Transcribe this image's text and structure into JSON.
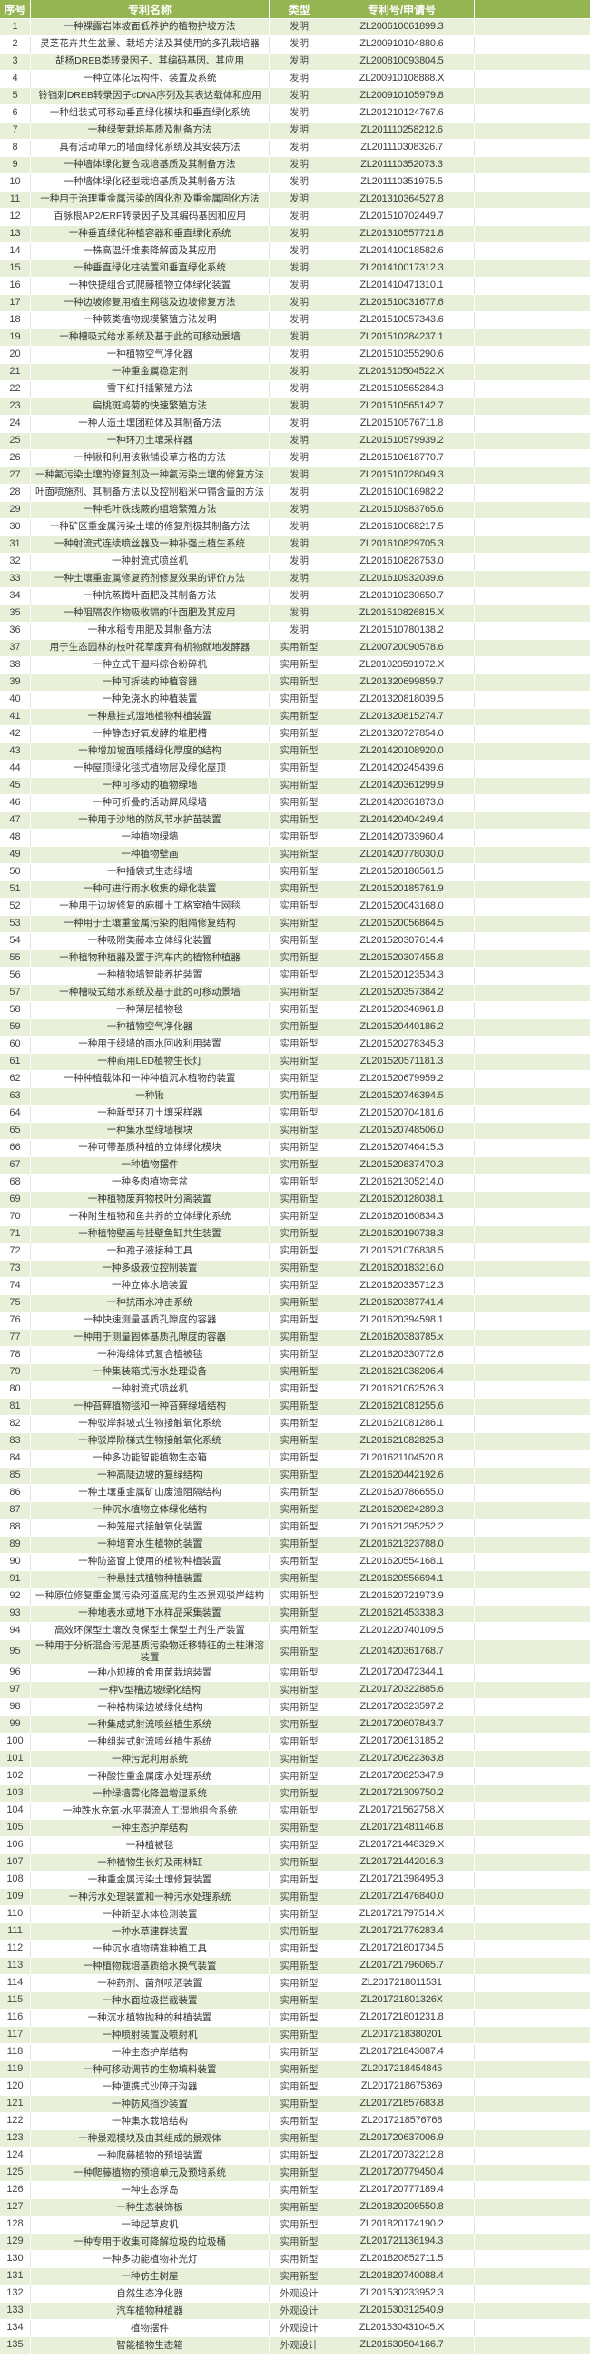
{
  "table": {
    "columns": [
      "序号",
      "专利名称",
      "类型",
      "专利号/申请号"
    ],
    "rows": [
      [
        "1",
        "一种裸露岩体坡面低养护的植物护坡方法",
        "发明",
        "ZL200610061899.3"
      ],
      [
        "2",
        "灵芝花卉共生盆景、栽培方法及其使用的多孔栽培器",
        "发明",
        "ZL200910104880.6"
      ],
      [
        "3",
        "胡杨DREB类转录因子、其编码基因、其应用",
        "发明",
        "ZL200810093804.5"
      ],
      [
        "4",
        "一种立体花坛构件、装置及系统",
        "发明",
        "ZL200910108888.X"
      ],
      [
        "5",
        "铃铛刺DREB转录因子cDNA序列及其表达载体和应用",
        "发明",
        "ZL200910105979.8"
      ],
      [
        "6",
        "一种组装式可移动垂直绿化模块和垂直绿化系统",
        "发明",
        "ZL201210124767.6"
      ],
      [
        "7",
        "一种绿萝栽培基质及制备方法",
        "发明",
        "ZL201110258212.6"
      ],
      [
        "8",
        "具有活动单元的墙面绿化系统及其安装方法",
        "发明",
        "ZL201110308326.7"
      ],
      [
        "9",
        "一种墙体绿化复合栽培基质及其制备方法",
        "发明",
        "ZL201110352073.3"
      ],
      [
        "10",
        "一种墙体绿化轻型栽培基质及其制备方法",
        "发明",
        "ZL201110351975.5"
      ],
      [
        "11",
        "一种用于治理重金属污染的固化剂及重金属固化方法",
        "发明",
        "ZL201310364527.8"
      ],
      [
        "12",
        "百脉根AP2/ERF转录因子及其编码基因和应用",
        "发明",
        "ZL201510702449.7"
      ],
      [
        "13",
        "一种垂直绿化种植容器和垂直绿化系统",
        "发明",
        "ZL201310557721.8"
      ],
      [
        "14",
        "一株高温纤维素降解菌及其应用",
        "发明",
        "ZL201410018582.6"
      ],
      [
        "15",
        "一种垂直绿化柱装置和垂直绿化系统",
        "发明",
        "ZL201410017312.3"
      ],
      [
        "16",
        "一种快捷组合式爬藤植物立体绿化装置",
        "发明",
        "ZL201410471310.1"
      ],
      [
        "17",
        "一种边坡修复用植生网毯及边坡修复方法",
        "发明",
        "ZL201510031677.6"
      ],
      [
        "18",
        "一种蕨类植物规模繁殖方法发明",
        "发明",
        "ZL201510057343.6"
      ],
      [
        "19",
        "一种槽吸式给水系统及基于此的可移动景墙",
        "发明",
        "ZL201510284237.1"
      ],
      [
        "20",
        "一种植物空气净化器",
        "发明",
        "ZL201510355290.6"
      ],
      [
        "21",
        "一种重金属稳定剂",
        "发明",
        "ZL201510504522.X"
      ],
      [
        "22",
        "雪下红扦插繁殖方法",
        "发明",
        "ZL201510565284.3"
      ],
      [
        "23",
        "扁桃斑鸠菊的快速繁殖方法",
        "发明",
        "ZL201510565142.7"
      ],
      [
        "24",
        "一种人造土壤团粒体及其制备方法",
        "发明",
        "ZL201510576711.8"
      ],
      [
        "25",
        "一种环刀土壤采样器",
        "发明",
        "ZL201510579939.2"
      ],
      [
        "26",
        "一种锹和利用该锹铺设草方格的方法",
        "发明",
        "ZL201510618770.7"
      ],
      [
        "27",
        "一种氟污染土壤的修复剂及一种氟污染土壤的修复方法",
        "发明",
        "ZL201510728049.3"
      ],
      [
        "28",
        "叶面喷施剂、其制备方法以及控制稻米中镉含量的方法",
        "发明",
        "ZL201610016982.2"
      ],
      [
        "29",
        "一种毛叶铁线蕨的组培繁殖方法",
        "发明",
        "ZL201510983765.6"
      ],
      [
        "30",
        "一种矿区重金属污染土壤的修复剂极其制备方法",
        "发明",
        "ZL201610068217.5"
      ],
      [
        "31",
        "一种射流式连续喷丝器及一种补强土植生系统",
        "发明",
        "ZL201610829705.3"
      ],
      [
        "32",
        "一种射流式喷丝机",
        "发明",
        "ZL201610828753.0"
      ],
      [
        "33",
        "一种土壤重金属修复药剂修复效果的评价方法",
        "发明",
        "ZL201610932039.6"
      ],
      [
        "34",
        "一种抗蒸腾叶面肥及其制备方法",
        "发明",
        "ZL201010230650.7"
      ],
      [
        "35",
        "一种阻隔农作物吸收镉的叶面肥及其应用",
        "发明",
        "ZL201510826815.X"
      ],
      [
        "36",
        "一种水稻专用肥及其制备方法",
        "发明",
        "ZL201510780138.2"
      ],
      [
        "37",
        "用于生态园林的枝叶花草废弃有机物就地发酵器",
        "实用新型",
        "ZL200720090578.6"
      ],
      [
        "38",
        "一种立式干湿料综合粉碎机",
        "实用新型",
        "ZL201020591972.X"
      ],
      [
        "39",
        "一种可拆装的种植容器",
        "实用新型",
        "ZL201320699859.7"
      ],
      [
        "40",
        "一种免浇水的种植装置",
        "实用新型",
        "ZL201320818039.5"
      ],
      [
        "41",
        "一种悬挂式湿地植物种植装置",
        "实用新型",
        "ZL201320815274.7"
      ],
      [
        "42",
        "一种静态好氧发酵的堆肥槽",
        "实用新型",
        "ZL201320727854.0"
      ],
      [
        "43",
        "一种增加坡面喷播绿化厚度的结构",
        "实用新型",
        "ZL201420108920.0"
      ],
      [
        "44",
        "一种屋顶绿化毯式植物层及绿化屋顶",
        "实用新型",
        "ZL201420245439.6"
      ],
      [
        "45",
        "一种可移动的植物绿墙",
        "实用新型",
        "ZL201420361299.9"
      ],
      [
        "46",
        "一种可折叠的活动屏风绿墙",
        "实用新型",
        "ZL201420361873.0"
      ],
      [
        "47",
        "一种用于沙地的防风节水护苗装置",
        "实用新型",
        "ZL201420404249.4"
      ],
      [
        "48",
        "一种植物绿墙",
        "实用新型",
        "ZL201420733960.4"
      ],
      [
        "49",
        "一种植物壁画",
        "实用新型",
        "ZL201420778030.0"
      ],
      [
        "50",
        "一种插袋式生态绿墙",
        "实用新型",
        "ZL201520186561.5"
      ],
      [
        "51",
        "一种可进行雨水收集的绿化装置",
        "实用新型",
        "ZL201520185761.9"
      ],
      [
        "52",
        "一种用于边坡修复的麻椰土工格室植生网毯",
        "实用新型",
        "ZL201520043168.0"
      ],
      [
        "53",
        "一种用于土壤重金属污染的阻隔修复结构",
        "实用新型",
        "ZL201520056864.5"
      ],
      [
        "54",
        "一种吸附类藤本立体绿化装置",
        "实用新型",
        "ZL201520307614.4"
      ],
      [
        "55",
        "一种植物种植器及置于汽车内的植物种植器",
        "实用新型",
        "ZL201520307455.8"
      ],
      [
        "56",
        "一种植物墙智能养护装置",
        "实用新型",
        "ZL201520123534.3"
      ],
      [
        "57",
        "一种槽吸式给水系统及基于此的可移动景墙",
        "实用新型",
        "ZL201520357384.2"
      ],
      [
        "58",
        "一种薄层植物毯",
        "实用新型",
        "ZL201520346961.8"
      ],
      [
        "59",
        "一种植物空气净化器",
        "实用新型",
        "ZL201520440186.2"
      ],
      [
        "60",
        "一种用于绿墙的雨水回收利用装置",
        "实用新型",
        "ZL201520278345.3"
      ],
      [
        "61",
        "一种商用LED植物生长灯",
        "实用新型",
        "ZL201520571181.3"
      ],
      [
        "62",
        "一种种植载体和一种种植沉水植物的装置",
        "实用新型",
        "ZL201520679959.2"
      ],
      [
        "63",
        "一种锹",
        "实用新型",
        "ZL201520746394.5"
      ],
      [
        "64",
        "一种新型环刀土壤采样器",
        "实用新型",
        "ZL201520704181.6"
      ],
      [
        "65",
        "一种集水型绿墙模块",
        "实用新型",
        "ZL201520748506.0"
      ],
      [
        "66",
        "一种可带基质种植的立体绿化模块",
        "实用新型",
        "ZL201520746415.3"
      ],
      [
        "67",
        "一种植物摆件",
        "实用新型",
        "ZL201520837470.3"
      ],
      [
        "68",
        "一种多肉植物套盆",
        "实用新型",
        "ZL201621305214.0"
      ],
      [
        "69",
        "一种植物废弃物枝叶分离装置",
        "实用新型",
        "ZL201620128038.1"
      ],
      [
        "70",
        "一种附生植物和鱼共养的立体绿化系统",
        "实用新型",
        "ZL201620160834.3"
      ],
      [
        "71",
        "一种植物壁画与挂壁鱼缸共生装置",
        "实用新型",
        "ZL201620190738.3"
      ],
      [
        "72",
        "一种孢子液接种工具",
        "实用新型",
        "ZL201521076838.5"
      ],
      [
        "73",
        "一种多级液位控制装置",
        "实用新型",
        "ZL201620183216.0"
      ],
      [
        "74",
        "一种立体水培装置",
        "实用新型",
        "ZL201620335712.3"
      ],
      [
        "75",
        "一种抗雨水冲击系统",
        "实用新型",
        "ZL201620387741.4"
      ],
      [
        "76",
        "一种快速测量基质孔隙度的容器",
        "实用新型",
        "ZL201620394598.1"
      ],
      [
        "77",
        "一种用于测量固体基质孔隙度的容器",
        "实用新型",
        "ZL201620383785.x"
      ],
      [
        "78",
        "一种海绵体式复合植被毯",
        "实用新型",
        "ZL201620330772.6"
      ],
      [
        "79",
        "一种集装箱式污水处理设备",
        "实用新型",
        "ZL201621038206.4"
      ],
      [
        "80",
        "一种射流式喷丝机",
        "实用新型",
        "ZL201621062526.3"
      ],
      [
        "81",
        "一种苔藓植物毯和一种苔藓绿墙结构",
        "实用新型",
        "ZL201621081255.6"
      ],
      [
        "82",
        "一种驳岸斜坡式生物接触氧化系统",
        "实用新型",
        "ZL201621081286.1"
      ],
      [
        "83",
        "一种驳岸阶梯式生物接触氧化系统",
        "实用新型",
        "ZL201621082825.3"
      ],
      [
        "84",
        "一种多功能智能植物生态箱",
        "实用新型",
        "ZL201621104520.8"
      ],
      [
        "85",
        "一种高陡边坡的复绿结构",
        "实用新型",
        "ZL201620442192.6"
      ],
      [
        "86",
        "一种土壤重金属矿山废渣阻隔结构",
        "实用新型",
        "ZL201620786655.0"
      ],
      [
        "87",
        "一种沉水植物立体绿化结构",
        "实用新型",
        "ZL201620824289.3"
      ],
      [
        "88",
        "一种笼屉式接触氧化装置",
        "实用新型",
        "ZL201621295252.2"
      ],
      [
        "89",
        "一种培育水生植物的装置",
        "实用新型",
        "ZL201621323788.0"
      ],
      [
        "90",
        "一种防盗窗上使用的植物种植装置",
        "实用新型",
        "ZL201620554168.1"
      ],
      [
        "91",
        "一种悬挂式植物种植装置",
        "实用新型",
        "ZL201620556694.1"
      ],
      [
        "92",
        "一种原位修复重金属污染河道底泥的生态景观驳岸结构",
        "实用新型",
        "ZL201620721973.9"
      ],
      [
        "93",
        "一种地表水或地下水样品采集装置",
        "实用新型",
        "ZL201621453338.3"
      ],
      [
        "94",
        "高效环保型土壤改良保型土保型土剂生产装置",
        "实用新型",
        "ZL201220740109.5"
      ],
      [
        "95",
        "一种用于分析混合污泥基质污染物迁移特征的土柱淋溶装置",
        "实用新型",
        "ZL201420361768.7"
      ],
      [
        "96",
        "一种小规模的食用菌栽培装置",
        "实用新型",
        "ZL201720472344.1"
      ],
      [
        "97",
        "一种V型槽边坡绿化结构",
        "实用新型",
        "ZL201720322885.6"
      ],
      [
        "98",
        "一种格构梁边坡绿化结构",
        "实用新型",
        "ZL201720323597.2"
      ],
      [
        "99",
        "一种集成式射流喷丝植生系统",
        "实用新型",
        "ZL201720607843.7"
      ],
      [
        "100",
        "一种组装式射流喷丝植生系统",
        "实用新型",
        "ZL201720613185.2"
      ],
      [
        "101",
        "一种污泥利用系统",
        "实用新型",
        "ZL201720622363.8"
      ],
      [
        "102",
        "一种酸性重金属废水处理系统",
        "实用新型",
        "ZL201720825347.9"
      ],
      [
        "103",
        "一种绿墙雾化降温增湿系统",
        "实用新型",
        "ZL201721309750.2"
      ],
      [
        "104",
        "一种跌水充氧-水平潜流人工湿地组合系统",
        "实用新型",
        "ZL201721562758.X"
      ],
      [
        "105",
        "一种生态护岸结构",
        "实用新型",
        "ZL201721481146.8"
      ],
      [
        "106",
        "一种植被毯",
        "实用新型",
        "ZL201721448329.X"
      ],
      [
        "107",
        "一种植物生长灯及雨林缸",
        "实用新型",
        "ZL201721442016.3"
      ],
      [
        "108",
        "一种重金属污染土壤修复装置",
        "实用新型",
        "ZL201721398495.3"
      ],
      [
        "109",
        "一种污水处理装置和一种污水处理系统",
        "实用新型",
        "ZL201721476840.0"
      ],
      [
        "110",
        "一种新型水体检测装置",
        "实用新型",
        "ZL201721797514.X"
      ],
      [
        "111",
        "一种水草建群装置",
        "实用新型",
        "ZL201721776283.4"
      ],
      [
        "112",
        "一种沉水植物精准种植工具",
        "实用新型",
        "ZL201721801734.5"
      ],
      [
        "113",
        "一种植物栽培基质给水换气装置",
        "实用新型",
        "ZL201721796065.7"
      ],
      [
        "114",
        "一种药剂、菌剂喷洒装置",
        "实用新型",
        "ZL2017218011531"
      ],
      [
        "115",
        "一种水面垃圾拦截装置",
        "实用新型",
        "ZL201721801326X"
      ],
      [
        "116",
        "一种沉水植物抛种的种植装置",
        "实用新型",
        "ZL201721801231.8"
      ],
      [
        "117",
        "一种喷射装置及喷射机",
        "实用新型",
        "ZL2017218380201"
      ],
      [
        "118",
        "一种生态护岸结构",
        "实用新型",
        "ZL201721843087.4"
      ],
      [
        "119",
        "一种可移动调节的生物填料装置",
        "实用新型",
        "ZL2017218454845"
      ],
      [
        "120",
        "一种便携式沙障开沟器",
        "实用新型",
        "ZL2017218675369"
      ],
      [
        "121",
        "一种防风挡沙装置",
        "实用新型",
        "ZL201721857683.8"
      ],
      [
        "122",
        "一种集水栽培结构",
        "实用新型",
        "ZL2017218576768"
      ],
      [
        "123",
        "一种景观模块及由其组成的景观体",
        "实用新型",
        "ZL201720637006.9"
      ],
      [
        "124",
        "一种爬藤植物的预培装置",
        "实用新型",
        "ZL201720732212.8"
      ],
      [
        "125",
        "一种爬藤植物的预培单元及预培系统",
        "实用新型",
        "ZL201720779450.4"
      ],
      [
        "126",
        "一种生态浮岛",
        "实用新型",
        "ZL201720777189.4"
      ],
      [
        "127",
        "一种生态装饰板",
        "实用新型",
        "ZL201820209550.8"
      ],
      [
        "128",
        "一种起草皮机",
        "实用新型",
        "ZL201820174190.2"
      ],
      [
        "129",
        "一种专用于收集可降解垃圾的垃圾桶",
        "实用新型",
        "ZL201721136194.3"
      ],
      [
        "130",
        "一种多功能植物补光灯",
        "实用新型",
        "ZL201820852711.5"
      ],
      [
        "131",
        "一种仿生树屋",
        "实用新型",
        "ZL201820740088.4"
      ],
      [
        "132",
        "自然生态净化器",
        "外观设计",
        "ZL201530233952.3"
      ],
      [
        "133",
        "汽车植物种植器",
        "外观设计",
        "ZL201530312540.9"
      ],
      [
        "134",
        "植物摆件",
        "外观设计",
        "ZL201530431045.X"
      ],
      [
        "135",
        "智能植物生态箱",
        "外观设计",
        "ZL201630504166.7"
      ]
    ]
  },
  "colors": {
    "header_bg": "#94B551",
    "header_text": "#FFFFFF",
    "row_alt_bg": "#E9F0DA",
    "row_bg": "#FFFFFF",
    "grid_white": "#FFFFFF",
    "grid_green": "#DFE9CC",
    "text": "#3B3B3B"
  }
}
